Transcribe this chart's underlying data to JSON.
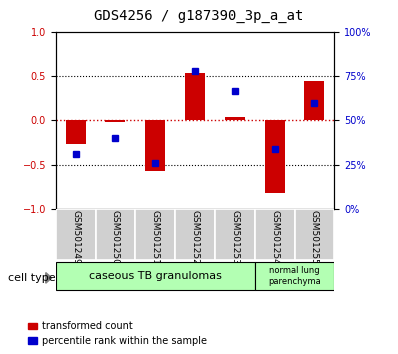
{
  "title": "GDS4256 / g187390_3p_a_at",
  "samples": [
    "GSM501249",
    "GSM501250",
    "GSM501251",
    "GSM501252",
    "GSM501253",
    "GSM501254",
    "GSM501255"
  ],
  "red_bars": [
    -0.27,
    -0.02,
    -0.57,
    0.53,
    0.04,
    -0.82,
    0.45
  ],
  "blue_squares": [
    -0.38,
    -0.2,
    -0.48,
    0.56,
    0.33,
    -0.32,
    0.2
  ],
  "left_ylim": [
    -1,
    1
  ],
  "left_yticks": [
    -1,
    -0.5,
    0,
    0.5,
    1
  ],
  "right_ylim": [
    0,
    100
  ],
  "right_yticks": [
    0,
    25,
    50,
    75,
    100
  ],
  "right_yticklabels": [
    "0%",
    "25%",
    "50%",
    "75%",
    "100%"
  ],
  "group1_label": "caseous TB granulomas",
  "group2_label": "normal lung\nparenchyma",
  "group1_color": "#b3ffb3",
  "group2_color": "#b3ffb3",
  "cell_type_label": "cell type",
  "legend1_label": "transformed count",
  "legend2_label": "percentile rank within the sample",
  "red_color": "#cc0000",
  "blue_color": "#0000cc",
  "bar_width": 0.5,
  "tick_label_size": 7,
  "title_size": 10
}
